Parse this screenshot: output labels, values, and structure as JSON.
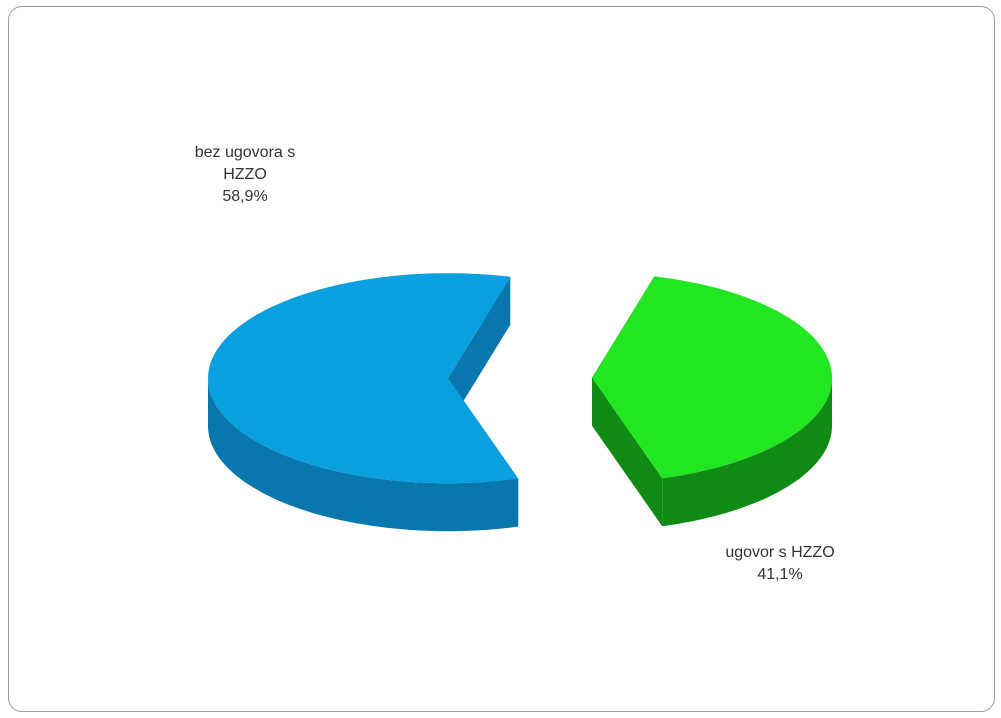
{
  "chart_data": {
    "type": "pie",
    "categories": [
      "bez ugovora s HZZO",
      "ugovor s HZZO"
    ],
    "values": [
      58.9,
      41.1
    ],
    "value_labels": [
      "58,9%",
      "41,1%"
    ],
    "colors": [
      "#0aa0df",
      "#22e622"
    ],
    "side_colors": [
      "#0877ad",
      "#0f8a12"
    ]
  }
}
